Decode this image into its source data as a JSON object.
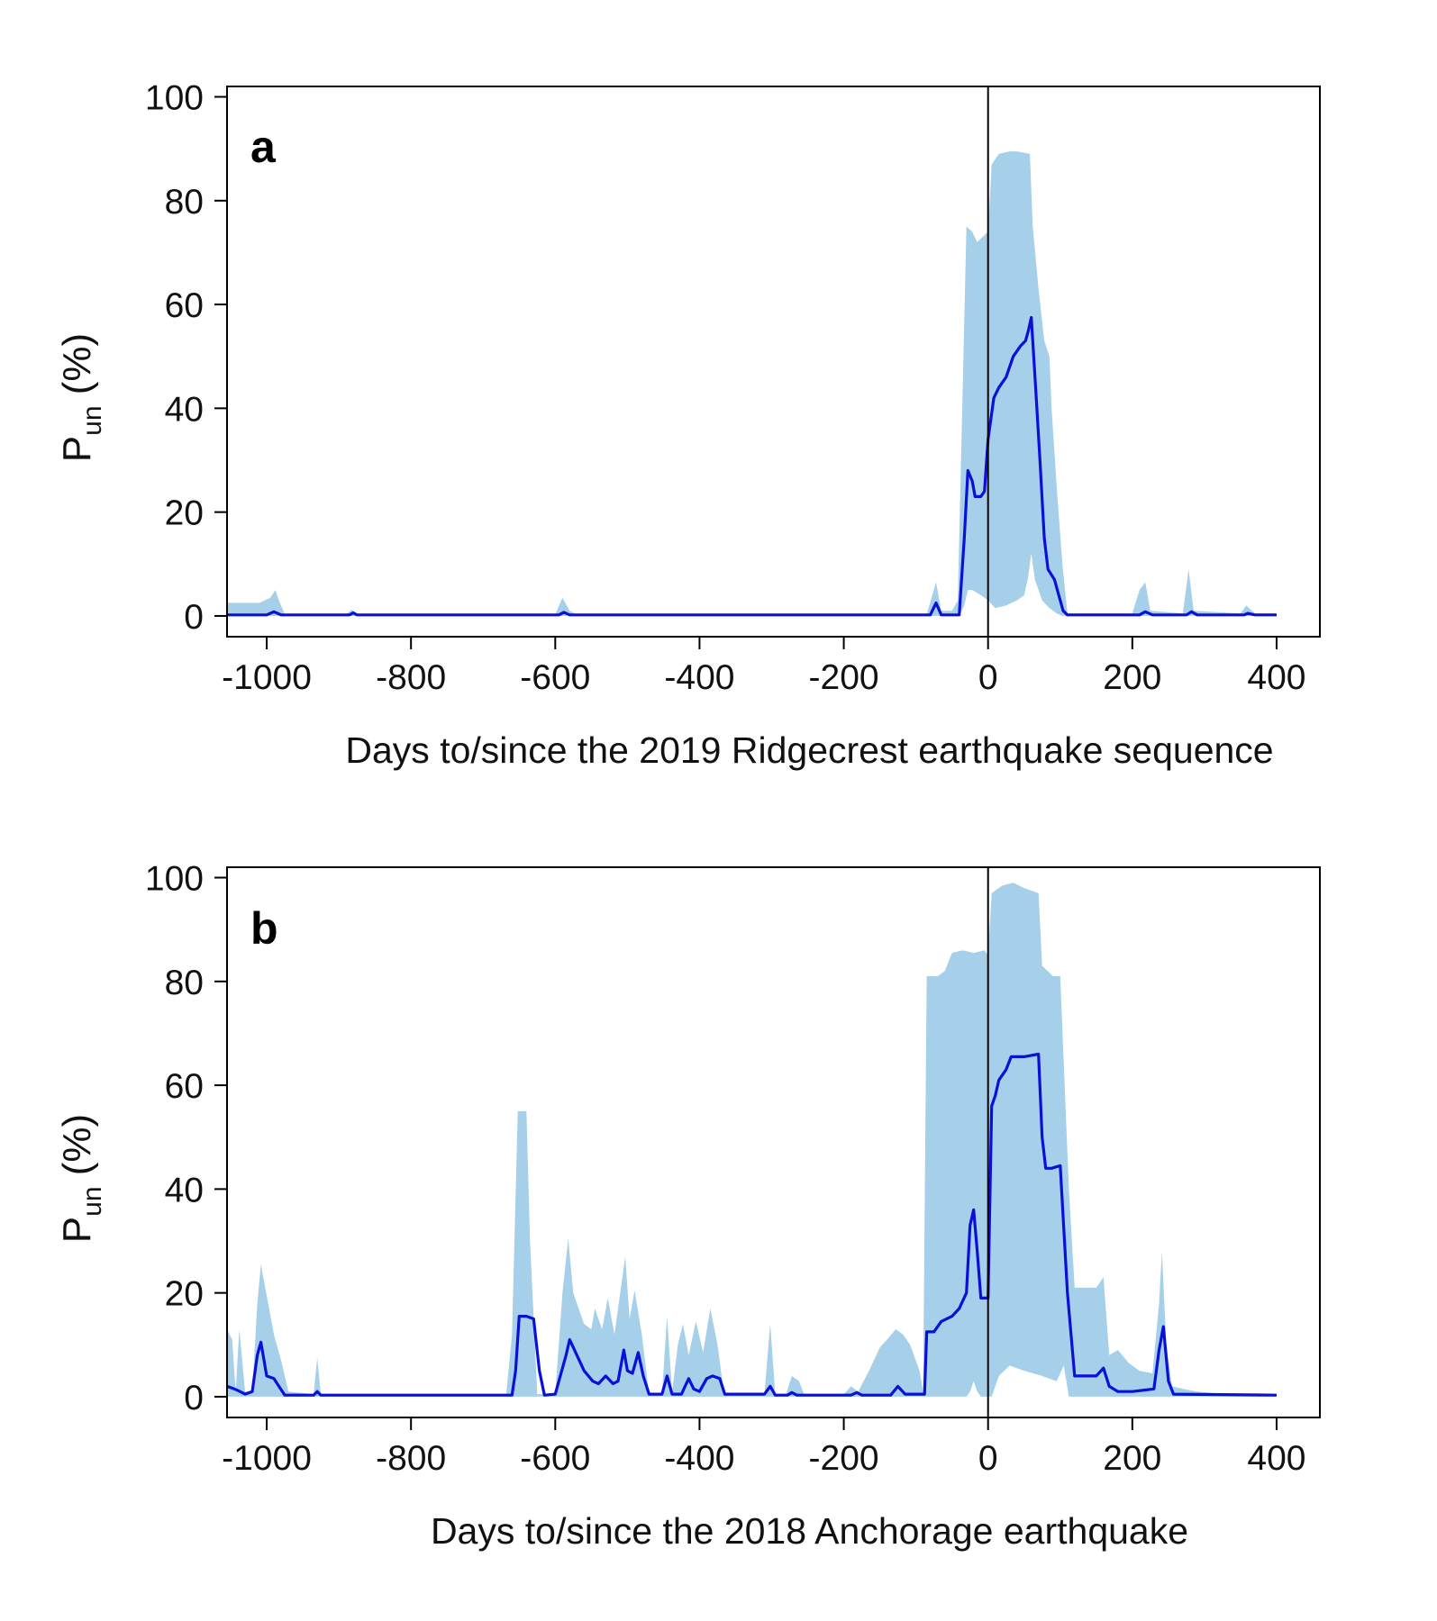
{
  "ylabel": {
    "main": "P",
    "sub": "un",
    "suffix": " (%)"
  },
  "chart_data": [
    {
      "type": "line",
      "panel": "a",
      "xlabel": "Days to/since the 2019 Ridgecrest earthquake sequence",
      "xlim": [
        -1055,
        460
      ],
      "ylim": [
        -4,
        102
      ],
      "xticks": [
        -1000,
        -800,
        -600,
        -400,
        -200,
        0,
        200,
        400
      ],
      "yticks": [
        0,
        20,
        40,
        60,
        80,
        100
      ],
      "vline_x": 0,
      "colors": {
        "line": "#0a10d8",
        "band": "#a6cfe9"
      },
      "line": [
        [
          -1055,
          0.2
        ],
        [
          -1000,
          0.2
        ],
        [
          -990,
          0.8
        ],
        [
          -980,
          0.2
        ],
        [
          -885,
          0.2
        ],
        [
          -880,
          0.6
        ],
        [
          -875,
          0.2
        ],
        [
          -595,
          0.2
        ],
        [
          -588,
          0.7
        ],
        [
          -580,
          0.2
        ],
        [
          -80,
          0.2
        ],
        [
          -72,
          2.5
        ],
        [
          -65,
          0.2
        ],
        [
          -40,
          0.2
        ],
        [
          -33,
          15
        ],
        [
          -28,
          28
        ],
        [
          -22,
          26
        ],
        [
          -18,
          23
        ],
        [
          -10,
          23
        ],
        [
          -5,
          24
        ],
        [
          0,
          34
        ],
        [
          8,
          42
        ],
        [
          15,
          44
        ],
        [
          25,
          46
        ],
        [
          35,
          50
        ],
        [
          45,
          52
        ],
        [
          52,
          53
        ],
        [
          56,
          55
        ],
        [
          60,
          57.5
        ],
        [
          66,
          44
        ],
        [
          72,
          30
        ],
        [
          78,
          15
        ],
        [
          83,
          9
        ],
        [
          92,
          7
        ],
        [
          98,
          4
        ],
        [
          104,
          1
        ],
        [
          110,
          0.2
        ],
        [
          210,
          0.2
        ],
        [
          218,
          0.8
        ],
        [
          228,
          0.2
        ],
        [
          275,
          0.2
        ],
        [
          282,
          0.8
        ],
        [
          290,
          0.2
        ],
        [
          355,
          0.2
        ],
        [
          360,
          0.5
        ],
        [
          370,
          0.2
        ],
        [
          400,
          0.2
        ]
      ],
      "band_upper": [
        [
          -1055,
          2.5
        ],
        [
          -1010,
          2.5
        ],
        [
          -995,
          3.5
        ],
        [
          -988,
          5
        ],
        [
          -983,
          3
        ],
        [
          -975,
          0.3
        ],
        [
          -890,
          0.3
        ],
        [
          -882,
          1.2
        ],
        [
          -875,
          0.3
        ],
        [
          -600,
          0.3
        ],
        [
          -590,
          3.5
        ],
        [
          -580,
          1
        ],
        [
          -570,
          0.3
        ],
        [
          -85,
          0.3
        ],
        [
          -72,
          6.5
        ],
        [
          -65,
          1
        ],
        [
          -50,
          1
        ],
        [
          -42,
          3
        ],
        [
          -35,
          45
        ],
        [
          -30,
          75
        ],
        [
          -22,
          74
        ],
        [
          -15,
          72
        ],
        [
          -8,
          73
        ],
        [
          0,
          74
        ],
        [
          5,
          87
        ],
        [
          15,
          89
        ],
        [
          30,
          89.5
        ],
        [
          40,
          89.5
        ],
        [
          58,
          89
        ],
        [
          62,
          75
        ],
        [
          70,
          63
        ],
        [
          78,
          53
        ],
        [
          85,
          50
        ],
        [
          88,
          40
        ],
        [
          95,
          25
        ],
        [
          103,
          10
        ],
        [
          110,
          0.5
        ],
        [
          200,
          0.5
        ],
        [
          210,
          5
        ],
        [
          218,
          6.5
        ],
        [
          225,
          1
        ],
        [
          270,
          0.5
        ],
        [
          278,
          9
        ],
        [
          285,
          1
        ],
        [
          350,
          0.5
        ],
        [
          358,
          2
        ],
        [
          370,
          0.5
        ],
        [
          400,
          0.5
        ]
      ],
      "band_lower": [
        [
          -1055,
          0
        ],
        [
          -40,
          0
        ],
        [
          -33,
          2
        ],
        [
          -28,
          5
        ],
        [
          -22,
          5
        ],
        [
          -10,
          4
        ],
        [
          0,
          3
        ],
        [
          10,
          1.5
        ],
        [
          25,
          2
        ],
        [
          40,
          3
        ],
        [
          50,
          4
        ],
        [
          55,
          7
        ],
        [
          60,
          12
        ],
        [
          65,
          7
        ],
        [
          75,
          3
        ],
        [
          85,
          1.5
        ],
        [
          95,
          0.5
        ],
        [
          103,
          0
        ],
        [
          400,
          0
        ]
      ]
    },
    {
      "type": "line",
      "panel": "b",
      "xlabel": "Days to/since the 2018 Anchorage earthquake",
      "xlim": [
        -1055,
        460
      ],
      "ylim": [
        -4,
        102
      ],
      "xticks": [
        -1000,
        -800,
        -600,
        -400,
        -200,
        0,
        200,
        400
      ],
      "yticks": [
        0,
        20,
        40,
        60,
        80,
        100
      ],
      "vline_x": 0,
      "colors": {
        "line": "#0a10d8",
        "band": "#a6cfe9"
      },
      "line": [
        [
          -1055,
          2
        ],
        [
          -1045,
          1.5
        ],
        [
          -1040,
          1.2
        ],
        [
          -1030,
          0.5
        ],
        [
          -1020,
          1
        ],
        [
          -1013,
          8
        ],
        [
          -1008,
          10.5
        ],
        [
          -1000,
          4
        ],
        [
          -990,
          3.5
        ],
        [
          -983,
          2
        ],
        [
          -975,
          0.3
        ],
        [
          -935,
          0.3
        ],
        [
          -930,
          1
        ],
        [
          -925,
          0.3
        ],
        [
          -660,
          0.3
        ],
        [
          -655,
          5
        ],
        [
          -650,
          15.5
        ],
        [
          -640,
          15.5
        ],
        [
          -630,
          15
        ],
        [
          -622,
          5
        ],
        [
          -615,
          0.3
        ],
        [
          -600,
          0.5
        ],
        [
          -593,
          4
        ],
        [
          -585,
          8
        ],
        [
          -580,
          11
        ],
        [
          -570,
          8
        ],
        [
          -560,
          5
        ],
        [
          -548,
          3
        ],
        [
          -540,
          2.5
        ],
        [
          -530,
          4
        ],
        [
          -520,
          2.5
        ],
        [
          -513,
          3
        ],
        [
          -505,
          9
        ],
        [
          -500,
          5
        ],
        [
          -493,
          4.5
        ],
        [
          -485,
          8.5
        ],
        [
          -478,
          4
        ],
        [
          -470,
          0.5
        ],
        [
          -452,
          0.5
        ],
        [
          -445,
          4
        ],
        [
          -438,
          0.5
        ],
        [
          -425,
          0.5
        ],
        [
          -415,
          3.5
        ],
        [
          -408,
          1.5
        ],
        [
          -400,
          1
        ],
        [
          -390,
          3.5
        ],
        [
          -382,
          4
        ],
        [
          -372,
          3.5
        ],
        [
          -365,
          0.5
        ],
        [
          -310,
          0.5
        ],
        [
          -302,
          2
        ],
        [
          -295,
          0.3
        ],
        [
          -278,
          0.3
        ],
        [
          -272,
          0.8
        ],
        [
          -265,
          0.3
        ],
        [
          -190,
          0.3
        ],
        [
          -182,
          0.8
        ],
        [
          -175,
          0.3
        ],
        [
          -135,
          0.3
        ],
        [
          -125,
          2
        ],
        [
          -115,
          0.5
        ],
        [
          -88,
          0.5
        ],
        [
          -85,
          12.5
        ],
        [
          -75,
          12.5
        ],
        [
          -65,
          14.5
        ],
        [
          -50,
          15.5
        ],
        [
          -40,
          17
        ],
        [
          -30,
          20
        ],
        [
          -25,
          33
        ],
        [
          -20,
          36
        ],
        [
          -15,
          28
        ],
        [
          -10,
          19
        ],
        [
          -5,
          19
        ],
        [
          0,
          19
        ],
        [
          5,
          56
        ],
        [
          10,
          58
        ],
        [
          15,
          61
        ],
        [
          25,
          63
        ],
        [
          32,
          65.5
        ],
        [
          50,
          65.5
        ],
        [
          70,
          66
        ],
        [
          75,
          50
        ],
        [
          80,
          44
        ],
        [
          88,
          44
        ],
        [
          100,
          44.5
        ],
        [
          110,
          20
        ],
        [
          120,
          4
        ],
        [
          135,
          4
        ],
        [
          150,
          4
        ],
        [
          160,
          5.5
        ],
        [
          168,
          2
        ],
        [
          180,
          1
        ],
        [
          200,
          1
        ],
        [
          230,
          1.5
        ],
        [
          237,
          9
        ],
        [
          243,
          13.5
        ],
        [
          250,
          3
        ],
        [
          257,
          0.5
        ],
        [
          400,
          0.3
        ]
      ],
      "band_upper": [
        [
          -1055,
          13
        ],
        [
          -1048,
          11
        ],
        [
          -1043,
          1
        ],
        [
          -1038,
          13
        ],
        [
          -1030,
          1
        ],
        [
          -1020,
          1
        ],
        [
          -1013,
          18
        ],
        [
          -1008,
          25.5
        ],
        [
          -998,
          18
        ],
        [
          -990,
          12
        ],
        [
          -980,
          7
        ],
        [
          -970,
          1
        ],
        [
          -935,
          0.5
        ],
        [
          -930,
          7.5
        ],
        [
          -925,
          0.5
        ],
        [
          -668,
          0.5
        ],
        [
          -660,
          12
        ],
        [
          -652,
          55
        ],
        [
          -640,
          55
        ],
        [
          -635,
          30
        ],
        [
          -625,
          0.5
        ],
        [
          -600,
          0.5
        ],
        [
          -590,
          20
        ],
        [
          -582,
          30.5
        ],
        [
          -575,
          20
        ],
        [
          -560,
          14
        ],
        [
          -550,
          13
        ],
        [
          -545,
          17
        ],
        [
          -535,
          13
        ],
        [
          -527,
          19
        ],
        [
          -518,
          12
        ],
        [
          -510,
          20
        ],
        [
          -503,
          27
        ],
        [
          -497,
          15
        ],
        [
          -490,
          20.5
        ],
        [
          -480,
          12
        ],
        [
          -470,
          0.5
        ],
        [
          -452,
          0.5
        ],
        [
          -445,
          15.5
        ],
        [
          -438,
          1
        ],
        [
          -430,
          10
        ],
        [
          -423,
          14
        ],
        [
          -415,
          8
        ],
        [
          -405,
          14.5
        ],
        [
          -395,
          8.5
        ],
        [
          -385,
          17
        ],
        [
          -375,
          10
        ],
        [
          -366,
          0.5
        ],
        [
          -310,
          0.5
        ],
        [
          -302,
          14
        ],
        [
          -295,
          0.5
        ],
        [
          -280,
          0.5
        ],
        [
          -272,
          4
        ],
        [
          -262,
          3
        ],
        [
          -255,
          0.5
        ],
        [
          -200,
          0.5
        ],
        [
          -190,
          2
        ],
        [
          -180,
          1
        ],
        [
          -165,
          5
        ],
        [
          -150,
          9.5
        ],
        [
          -140,
          11
        ],
        [
          -128,
          13
        ],
        [
          -118,
          12
        ],
        [
          -108,
          10
        ],
        [
          -95,
          5
        ],
        [
          -90,
          1
        ],
        [
          -85,
          81
        ],
        [
          -70,
          81
        ],
        [
          -60,
          82
        ],
        [
          -50,
          85.5
        ],
        [
          -35,
          86
        ],
        [
          -20,
          85.5
        ],
        [
          -5,
          86
        ],
        [
          0,
          85
        ],
        [
          5,
          97
        ],
        [
          20,
          98.5
        ],
        [
          35,
          99
        ],
        [
          50,
          98
        ],
        [
          70,
          97
        ],
        [
          75,
          83
        ],
        [
          90,
          81
        ],
        [
          100,
          81
        ],
        [
          112,
          40
        ],
        [
          120,
          21
        ],
        [
          150,
          21
        ],
        [
          160,
          23
        ],
        [
          168,
          8
        ],
        [
          180,
          9
        ],
        [
          195,
          6.5
        ],
        [
          210,
          5
        ],
        [
          228,
          4.5
        ],
        [
          237,
          18
        ],
        [
          241,
          28
        ],
        [
          247,
          10
        ],
        [
          255,
          2
        ],
        [
          270,
          1.5
        ],
        [
          290,
          1
        ],
        [
          330,
          0.5
        ],
        [
          400,
          0.3
        ]
      ],
      "band_lower": [
        [
          -1055,
          0
        ],
        [
          -30,
          0
        ],
        [
          -25,
          1
        ],
        [
          -20,
          3
        ],
        [
          -15,
          1
        ],
        [
          -10,
          0
        ],
        [
          5,
          0
        ],
        [
          15,
          4
        ],
        [
          30,
          6
        ],
        [
          50,
          5
        ],
        [
          75,
          4
        ],
        [
          95,
          3
        ],
        [
          105,
          6
        ],
        [
          112,
          0
        ],
        [
          400,
          0
        ]
      ]
    }
  ]
}
